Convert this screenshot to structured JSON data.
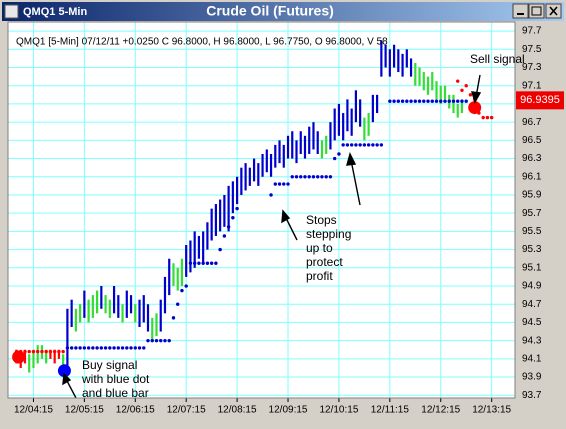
{
  "window": {
    "title": "QMQ1 5-Min"
  },
  "chart_data": {
    "type": "range-bar",
    "title": "Crude Oil (Futures)",
    "info": "QMQ1 [5-Min] 07/12/11 +0.0250 C 96.8000, H 96.8000, L 96.7750, O 96.8000, V 58",
    "ylim": [
      93.67,
      97.8
    ],
    "yticks": [
      93.7,
      93.9,
      94.1,
      94.3,
      94.5,
      94.7,
      94.9,
      95.1,
      95.3,
      95.5,
      95.7,
      95.9,
      96.1,
      96.3,
      96.5,
      96.7,
      96.9,
      97.1,
      97.3,
      97.5,
      97.7
    ],
    "xlim": [
      -2,
      117.5
    ],
    "xticks": [
      {
        "value": 4,
        "label": "12/04:15"
      },
      {
        "value": 16,
        "label": "12/05:15"
      },
      {
        "value": 28,
        "label": "12/06:15"
      },
      {
        "value": 40,
        "label": "12/07:15"
      },
      {
        "value": 52,
        "label": "12/08:15"
      },
      {
        "value": 64,
        "label": "12/09:15"
      },
      {
        "value": 76,
        "label": "12/10:15"
      },
      {
        "value": 88,
        "label": "12/11:15"
      },
      {
        "value": 100,
        "label": "12/12:15"
      },
      {
        "value": 112,
        "label": "12/13:15"
      }
    ],
    "grid": true,
    "high": [
      94.2,
      94.15,
      94.2,
      94.15,
      94.2,
      94.25,
      94.25,
      94.2,
      94.2,
      94.2,
      94.2,
      94.15,
      94.65,
      94.75,
      94.65,
      94.7,
      94.85,
      94.75,
      94.8,
      94.85,
      94.9,
      94.8,
      94.75,
      94.9,
      94.8,
      94.7,
      94.85,
      94.8,
      94.7,
      94.75,
      94.8,
      94.7,
      94.55,
      94.6,
      94.75,
      95.0,
      95.2,
      95.15,
      95.1,
      95.2,
      95.35,
      95.4,
      95.5,
      95.45,
      95.5,
      95.6,
      95.75,
      95.8,
      95.85,
      95.9,
      96.0,
      96.05,
      96.1,
      96.2,
      96.25,
      96.2,
      96.3,
      96.25,
      96.35,
      96.4,
      96.35,
      96.45,
      96.5,
      96.45,
      96.55,
      96.6,
      96.5,
      96.6,
      96.55,
      96.65,
      96.7,
      96.6,
      96.5,
      96.55,
      96.7,
      96.85,
      96.9,
      96.8,
      96.95,
      96.85,
      97.05,
      96.95,
      96.75,
      96.8,
      97.0,
      97.0,
      97.6,
      97.55,
      97.5,
      97.55,
      97.5,
      97.45,
      97.5,
      97.4,
      97.35,
      97.3,
      97.25,
      97.2,
      97.25,
      97.15,
      97.1,
      97.1,
      97.0,
      97.0,
      96.9,
      96.95
    ],
    "low": [
      94.05,
      94.0,
      94.05,
      93.95,
      94.0,
      94.05,
      94.1,
      94.05,
      94.1,
      94.05,
      94.1,
      94.0,
      94.0,
      94.45,
      94.4,
      94.5,
      94.55,
      94.5,
      94.55,
      94.6,
      94.65,
      94.6,
      94.55,
      94.6,
      94.55,
      94.5,
      94.55,
      94.6,
      94.5,
      94.45,
      94.5,
      94.4,
      94.3,
      94.35,
      94.4,
      94.6,
      94.8,
      94.9,
      94.85,
      94.9,
      95.0,
      95.05,
      95.1,
      95.2,
      95.15,
      95.3,
      95.4,
      95.45,
      95.5,
      95.55,
      95.5,
      95.7,
      95.8,
      95.9,
      95.95,
      96.0,
      96.05,
      96.0,
      96.1,
      96.15,
      96.1,
      96.2,
      96.25,
      96.2,
      96.3,
      96.3,
      96.25,
      96.35,
      96.3,
      96.35,
      96.4,
      96.35,
      96.3,
      96.35,
      96.4,
      96.5,
      96.55,
      96.5,
      96.6,
      96.55,
      96.7,
      96.65,
      96.5,
      96.55,
      96.7,
      96.8,
      97.2,
      97.3,
      97.2,
      97.3,
      97.25,
      97.2,
      97.3,
      97.2,
      97.1,
      97.1,
      97.05,
      97.0,
      97.05,
      96.95,
      96.9,
      96.95,
      96.85,
      96.8,
      96.75,
      96.8
    ],
    "colors": [
      "#ff0000",
      "#ff0000",
      "#ff0000",
      "#33dd33",
      "#33dd33",
      "#33dd33",
      "#33dd33",
      "#33dd33",
      "#ff0000",
      "#ff0000",
      "#ff0000",
      "#33dd33",
      "#0000cc",
      "#0000cc",
      "#33dd33",
      "#33dd33",
      "#0000cc",
      "#33dd33",
      "#33dd33",
      "#33dd33",
      "#0000cc",
      "#33dd33",
      "#33dd33",
      "#0000cc",
      "#0000cc",
      "#33dd33",
      "#0000cc",
      "#0000cc",
      "#33dd33",
      "#0000cc",
      "#0000cc",
      "#0000cc",
      "#33dd33",
      "#33dd33",
      "#0000cc",
      "#0000cc",
      "#0000cc",
      "#33dd33",
      "#33dd33",
      "#33dd33",
      "#0000cc",
      "#0000cc",
      "#0000cc",
      "#0000cc",
      "#0000cc",
      "#0000cc",
      "#0000cc",
      "#0000cc",
      "#0000cc",
      "#0000cc",
      "#0000cc",
      "#0000cc",
      "#0000cc",
      "#0000cc",
      "#0000cc",
      "#0000cc",
      "#0000cc",
      "#0000cc",
      "#0000cc",
      "#0000cc",
      "#0000cc",
      "#0000cc",
      "#0000cc",
      "#0000cc",
      "#0000cc",
      "#0000cc",
      "#0000cc",
      "#0000cc",
      "#0000cc",
      "#0000cc",
      "#0000cc",
      "#0000cc",
      "#33dd33",
      "#33dd33",
      "#0000cc",
      "#0000cc",
      "#0000cc",
      "#0000cc",
      "#0000cc",
      "#0000cc",
      "#0000cc",
      "#0000cc",
      "#33dd33",
      "#33dd33",
      "#0000cc",
      "#0000cc",
      "#0000cc",
      "#0000cc",
      "#0000cc",
      "#0000cc",
      "#0000cc",
      "#0000cc",
      "#0000cc",
      "#0000cc",
      "#33dd33",
      "#33dd33",
      "#33dd33",
      "#33dd33",
      "#33dd33",
      "#33dd33",
      "#33dd33",
      "#33dd33",
      "#33dd33",
      "#33dd33",
      "#33dd33",
      "#33dd33"
    ],
    "stops": [
      {
        "color": "#0000cc",
        "x": [
          12,
          13,
          14,
          15,
          16,
          17,
          18,
          19,
          20,
          21,
          22,
          23,
          24,
          25,
          26,
          27,
          28,
          29,
          30,
          31,
          32,
          33,
          34,
          35,
          36,
          37,
          38,
          39,
          40,
          41,
          42,
          43,
          44,
          45,
          46,
          47,
          48,
          49,
          50,
          51,
          52,
          60,
          61,
          62,
          63,
          64,
          65,
          66,
          67,
          68,
          69,
          70,
          71,
          72,
          73,
          74,
          75,
          76,
          77,
          78,
          79,
          80,
          81,
          82,
          83,
          84,
          85,
          86,
          88,
          89,
          90,
          91,
          92,
          93,
          94,
          95,
          96,
          97,
          98,
          99,
          100,
          101,
          102,
          103,
          104,
          105,
          106
        ],
        "y": [
          94.22,
          94.22,
          94.22,
          94.22,
          94.22,
          94.22,
          94.22,
          94.22,
          94.22,
          94.22,
          94.22,
          94.22,
          94.22,
          94.22,
          94.22,
          94.22,
          94.22,
          94.22,
          94.22,
          94.3,
          94.3,
          94.3,
          94.3,
          94.3,
          94.3,
          94.55,
          94.7,
          94.85,
          94.9,
          95.15,
          95.15,
          95.15,
          95.15,
          95.15,
          95.15,
          95.15,
          95.3,
          95.45,
          95.55,
          95.65,
          95.75,
          95.9,
          96.02,
          96.02,
          96.02,
          96.02,
          96.1,
          96.1,
          96.1,
          96.1,
          96.1,
          96.1,
          96.1,
          96.1,
          96.1,
          96.1,
          96.3,
          96.35,
          96.45,
          96.45,
          96.45,
          96.45,
          96.45,
          96.45,
          96.45,
          96.45,
          96.45,
          96.45,
          96.93,
          96.93,
          96.93,
          96.93,
          96.93,
          96.93,
          96.93,
          96.93,
          96.93,
          96.93,
          96.93,
          96.93,
          96.93,
          96.93,
          96.93,
          96.93,
          96.93,
          96.93,
          96.93
        ]
      },
      {
        "color": "#ff0000",
        "x": [
          0,
          1,
          2,
          3,
          4,
          5,
          6,
          7,
          8,
          9,
          10,
          11,
          104,
          105,
          106,
          107,
          108,
          109,
          110,
          111,
          112
        ],
        "y": [
          94.18,
          94.18,
          94.18,
          94.18,
          94.18,
          94.18,
          94.18,
          94.18,
          94.18,
          94.18,
          94.18,
          94.18,
          97.15,
          97.05,
          97.1,
          97.0,
          96.95,
          96.8,
          96.75,
          96.75,
          96.75
        ]
      }
    ],
    "signals": [
      {
        "x": 0.5,
        "y": 94.12,
        "color": "#ff0000"
      },
      {
        "x": 11.3,
        "y": 93.97,
        "color": "#0000ff"
      },
      {
        "x": 108,
        "y": 96.86,
        "color": "#ff0000"
      }
    ],
    "last_price": 96.9395,
    "annotations": [
      {
        "lines": [
          "Buy signal",
          "with blue dot",
          "and blue bar"
        ]
      },
      {
        "lines": [
          "Stops",
          "stepping",
          "up to",
          "protect",
          "profit"
        ]
      },
      {
        "lines": [
          "Sell signal"
        ]
      }
    ]
  }
}
